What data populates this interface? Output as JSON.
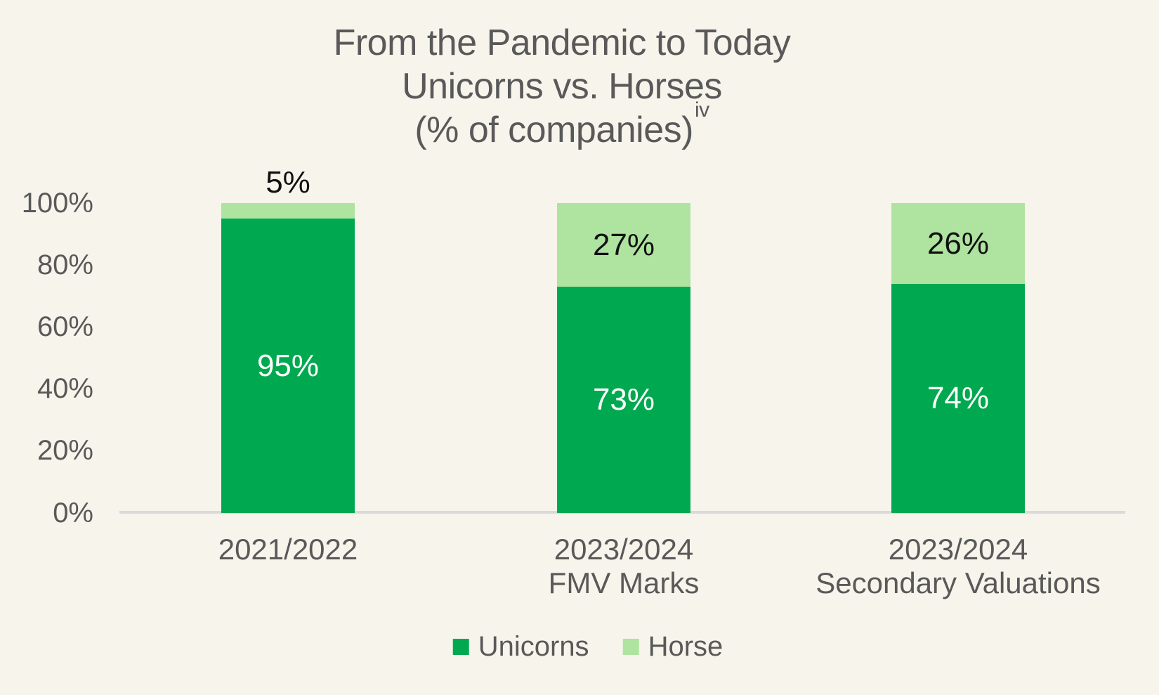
{
  "chart_data": {
    "type": "bar",
    "stacked": true,
    "title_lines": [
      "From the Pandemic to Today",
      "Unicorns vs. Horses",
      "(% of companies)"
    ],
    "title_footnote_superscript": "iv",
    "categories": [
      "2021/2022",
      "2023/2024 FMV Marks",
      "2023/2024 Secondary Valuations"
    ],
    "category_lines": [
      [
        "2021/2022"
      ],
      [
        "2023/2024",
        "FMV Marks"
      ],
      [
        "2023/2024",
        "Secondary Valuations"
      ]
    ],
    "series": [
      {
        "name": "Unicorns",
        "color": "#00A94F",
        "values": [
          95,
          73,
          74
        ],
        "value_labels": [
          "95%",
          "73%",
          "74%"
        ],
        "label_color": "#FFFFFF"
      },
      {
        "name": "Horse",
        "color": "#AFE3A0",
        "values": [
          5,
          27,
          26
        ],
        "value_labels": [
          "5%",
          "27%",
          "26%"
        ],
        "label_color": "#111111"
      }
    ],
    "y_axis": {
      "ticks": [
        "100%",
        "80%",
        "60%",
        "40%",
        "20%",
        "0%"
      ],
      "min": 0,
      "max": 100,
      "unit": "%"
    },
    "legend": {
      "position": "bottom",
      "items": [
        "Unicorns",
        "Horse"
      ]
    },
    "grid": false,
    "colors": {
      "background": "#F7F4EC",
      "text": "#595959",
      "axis_line": "#DADADA"
    }
  }
}
